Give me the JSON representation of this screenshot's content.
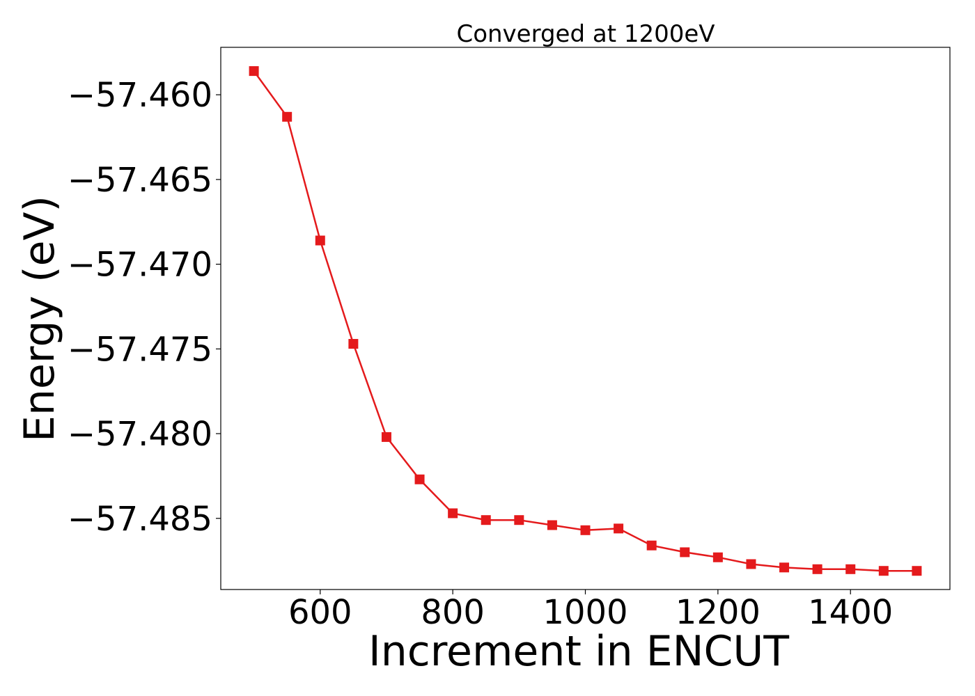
{
  "chart_data": {
    "type": "line",
    "title": "Converged at 1200eV",
    "xlabel": "Increment in ENCUT",
    "ylabel": "Energy (eV)",
    "xlim": [
      450,
      1550
    ],
    "ylim": [
      -57.4892,
      -57.4572
    ],
    "xticks": [
      600,
      800,
      1000,
      1200,
      1400
    ],
    "xtick_labels": [
      "600",
      "800",
      "1000",
      "1200",
      "1400"
    ],
    "yticks": [
      -57.46,
      -57.465,
      -57.47,
      -57.475,
      -57.48,
      -57.485
    ],
    "ytick_labels": [
      "−57.460",
      "−57.465",
      "−57.470",
      "−57.475",
      "−57.480",
      "−57.485"
    ],
    "grid": false,
    "series": [
      {
        "color": "#e41a1c",
        "marker": "square",
        "x": [
          500,
          550,
          600,
          650,
          700,
          750,
          800,
          850,
          900,
          950,
          1000,
          1050,
          1100,
          1150,
          1200,
          1250,
          1300,
          1350,
          1400,
          1450,
          1500
        ],
        "y": [
          -57.4586,
          -57.4613,
          -57.4686,
          -57.4747,
          -57.4802,
          -57.4827,
          -57.4847,
          -57.4851,
          -57.4851,
          -57.4854,
          -57.4857,
          -57.4856,
          -57.4866,
          -57.487,
          -57.4873,
          -57.4877,
          -57.4879,
          -57.488,
          -57.488,
          -57.4881,
          -57.4881
        ]
      }
    ]
  }
}
